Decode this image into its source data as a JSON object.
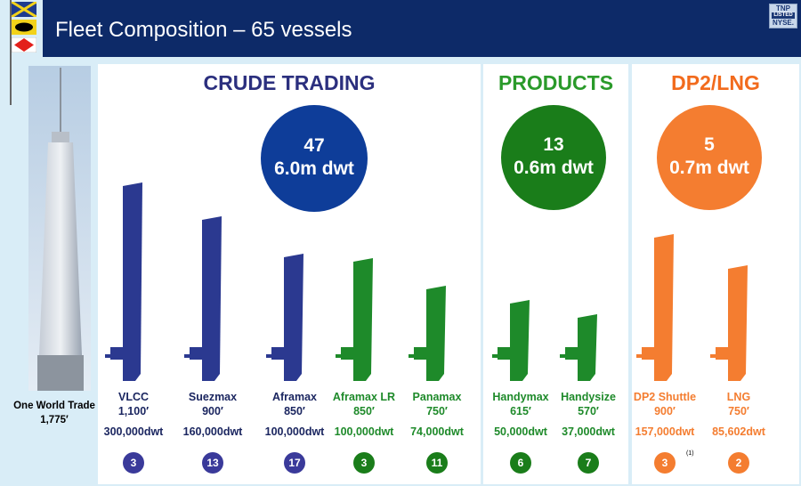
{
  "header": {
    "title": "Fleet Composition – 65 vessels",
    "logo_top": "TNP",
    "logo_mid": "LISTED",
    "logo_bottom": "NYSE."
  },
  "colors": {
    "navy": "#2b3990",
    "green": "#1e8a2a",
    "orange": "#f47d30",
    "header": "#0d2a68"
  },
  "wtc": {
    "name": "One World Trade",
    "height": "1,775′"
  },
  "sections": {
    "crude": {
      "title": "CRUDE TRADING",
      "count": "47",
      "dwt": "6.0m dwt"
    },
    "products": {
      "title": "PRODUCTS",
      "count": "13",
      "dwt": "0.6m dwt"
    },
    "lng": {
      "title": "DP2/LNG",
      "count": "5",
      "dwt": "0.7m dwt"
    }
  },
  "vessels": [
    {
      "name": "VLCC",
      "length": "1,100′",
      "dwt": "300,000dwt",
      "count": "3"
    },
    {
      "name": "Suezmax",
      "length": "900′",
      "dwt": "160,000dwt",
      "count": "13"
    },
    {
      "name": "Aframax",
      "length": "850′",
      "dwt": "100,000dwt",
      "count": "17"
    },
    {
      "name": "Aframax LR",
      "length": "850′",
      "dwt": "100,000dwt",
      "count": "3"
    },
    {
      "name": "Panamax",
      "length": "750′",
      "dwt": "74,000dwt",
      "count": "11"
    },
    {
      "name": "Handymax",
      "length": "615′",
      "dwt": "50,000dwt",
      "count": "6"
    },
    {
      "name": "Handysize",
      "length": "570′",
      "dwt": "37,000dwt",
      "count": "7"
    },
    {
      "name": "DP2 Shuttle",
      "length": "900′",
      "dwt": "157,000dwt",
      "count": "3"
    },
    {
      "name": "LNG",
      "length": "750′",
      "dwt": "85,602dwt",
      "count": "2"
    }
  ],
  "footnote": "(1)"
}
